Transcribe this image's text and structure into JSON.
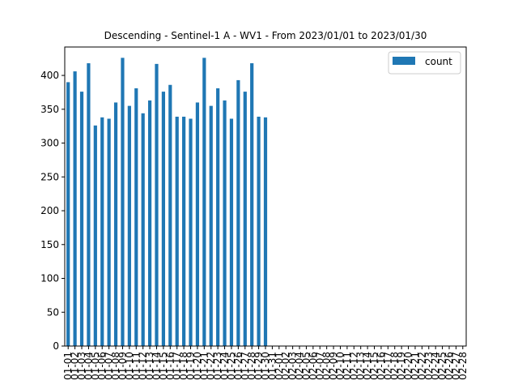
{
  "chart_data": {
    "type": "bar",
    "title": "Descending - Sentinel-1 A - WV1 - From 2023/01/01 to 2023/01/30",
    "xlabel": "",
    "ylabel": "",
    "ylim": [
      0,
      442
    ],
    "yticks": [
      0,
      50,
      100,
      150,
      200,
      250,
      300,
      350,
      400
    ],
    "categories": [
      "01-01",
      "01-02",
      "01-03",
      "01-04",
      "01-05",
      "01-06",
      "01-07",
      "01-08",
      "01-09",
      "01-10",
      "01-11",
      "01-12",
      "01-13",
      "01-14",
      "01-15",
      "01-16",
      "01-17",
      "01-18",
      "01-19",
      "01-20",
      "01-21",
      "01-22",
      "01-23",
      "01-24",
      "01-25",
      "01-26",
      "01-27",
      "01-28",
      "01-29",
      "01-30",
      "01-31",
      "02-01",
      "02-02",
      "02-03",
      "02-04",
      "02-05",
      "02-06",
      "02-07",
      "02-08",
      "02-09",
      "02-10",
      "02-11",
      "02-12",
      "02-13",
      "02-14",
      "02-15",
      "02-16",
      "02-17",
      "02-18",
      "02-19",
      "02-20",
      "02-21",
      "02-22",
      "02-23",
      "02-24",
      "02-25",
      "02-26",
      "02-27",
      "02-28"
    ],
    "x_tick_labels": [
      "01-01",
      "01-02",
      "01-03",
      "01-04",
      "01-05",
      "01-06",
      "01-07",
      "01-08",
      "01-09",
      "01-10",
      "01-11",
      "01-12",
      "01-13",
      "01-14",
      "01-15",
      "01-16",
      "01-17",
      "01-18",
      "01-19",
      "01-20",
      "01-21",
      "01-22",
      "01-23",
      "01-24",
      "01-25",
      "01-26",
      "01-27",
      "01-28",
      "01-29",
      "01-30",
      "01-31",
      "02-01",
      "02-02",
      "02-03",
      "02-04",
      "02-05",
      "02-06",
      "02-07",
      "02-08",
      "02-09",
      "02-10",
      "02-11",
      "02-12",
      "02-13",
      "02-14",
      "02-15",
      "02-16",
      "02-17",
      "02-18",
      "02-19",
      "02-20",
      "02-21",
      "02-22",
      "02-23",
      "02-24",
      "02-25",
      "02-26",
      "02-27",
      "02-28"
    ],
    "series": [
      {
        "name": "count",
        "color": "#1f77b4",
        "values": [
          390,
          406,
          376,
          418,
          326,
          338,
          336,
          360,
          426,
          355,
          381,
          344,
          363,
          417,
          376,
          386,
          339,
          339,
          336,
          360,
          426,
          355,
          381,
          363,
          336,
          393,
          376,
          418,
          339,
          338,
          0,
          0,
          0,
          0,
          0,
          0,
          0,
          0,
          0,
          0,
          0,
          0,
          0,
          0,
          0,
          0,
          0,
          0,
          0,
          0,
          0,
          0,
          0,
          0,
          0,
          0,
          0,
          0,
          0
        ]
      }
    ],
    "legend": {
      "placement": "top-right",
      "label": "count"
    },
    "grid": false
  }
}
